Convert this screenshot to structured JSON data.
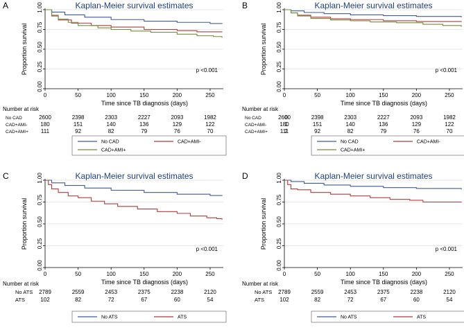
{
  "colors": {
    "blue": "#3c5a96",
    "red": "#b23a3a",
    "green": "#6e8c3a",
    "title": "#1f3f7f",
    "axis": "#000000",
    "grid": "#d0d0d0"
  },
  "chart_data": [
    {
      "type": "line",
      "panel_letter": "A",
      "title": "Kaplan-Meier survival estimates",
      "xlabel": "Time since TB diagnosis (days)",
      "ylabel": "Proportion survival",
      "xlim": [
        0,
        270
      ],
      "ylim": [
        0,
        1
      ],
      "xticks": [
        0,
        50,
        100,
        150,
        200,
        250
      ],
      "yticks": [
        "0.00",
        "0.25",
        "0.50",
        "0.75",
        "1.00"
      ],
      "annotation": "p <0.001",
      "series": [
        {
          "name": "No CAD",
          "color": "blue",
          "points": [
            [
              0,
              1.0
            ],
            [
              10,
              0.97
            ],
            [
              30,
              0.935
            ],
            [
              60,
              0.905
            ],
            [
              100,
              0.875
            ],
            [
              150,
              0.855
            ],
            [
              200,
              0.84
            ],
            [
              250,
              0.825
            ],
            [
              268,
              0.82
            ]
          ]
        },
        {
          "name": "CAD+AMI-",
          "color": "red",
          "points": [
            [
              0,
              1.0
            ],
            [
              10,
              0.92
            ],
            [
              20,
              0.87
            ],
            [
              40,
              0.83
            ],
            [
              70,
              0.8
            ],
            [
              100,
              0.78
            ],
            [
              150,
              0.75
            ],
            [
              200,
              0.735
            ],
            [
              230,
              0.72
            ],
            [
              268,
              0.715
            ]
          ]
        },
        {
          "name": "CAD+AMI+",
          "color": "green",
          "points": [
            [
              0,
              1.0
            ],
            [
              10,
              0.93
            ],
            [
              20,
              0.88
            ],
            [
              35,
              0.84
            ],
            [
              50,
              0.8
            ],
            [
              80,
              0.77
            ],
            [
              100,
              0.75
            ],
            [
              130,
              0.73
            ],
            [
              160,
              0.715
            ],
            [
              200,
              0.69
            ],
            [
              230,
              0.67
            ],
            [
              255,
              0.66
            ],
            [
              268,
              0.645
            ]
          ]
        }
      ],
      "risk_table": {
        "header": "Number at risk",
        "rows": [
          {
            "label": "No CAD",
            "prefix": "",
            "values": [
              "2600",
              "2398",
              "2303",
              "2227",
              "2093",
              "1982"
            ]
          },
          {
            "label": "CAD+AMI-",
            "prefix": "",
            "values": [
              "180",
              "151",
              "140",
              "136",
              "129",
              "122"
            ]
          },
          {
            "label": "CAD+AMI+",
            "prefix": "",
            "values": [
              "111",
              "92",
              "82",
              "79",
              "76",
              "70"
            ]
          }
        ]
      },
      "legend": [
        "No CAD",
        "CAD+AMI-",
        "CAD+AMI+"
      ]
    },
    {
      "type": "line",
      "panel_letter": "B",
      "title": "Kaplan-Meier survival estimates",
      "xlabel": "Time since TB diagnosis (days)",
      "ylabel": "Proportion survival",
      "xlim": [
        0,
        270
      ],
      "ylim": [
        0,
        1
      ],
      "xticks": [
        0,
        50,
        100,
        150,
        200,
        250
      ],
      "yticks": [
        "0.00",
        "0.25",
        "0.50",
        "0.75",
        "1.00"
      ],
      "annotation": "p <0.001",
      "series": [
        {
          "name": "No CAD",
          "color": "blue",
          "points": [
            [
              0,
              1.0
            ],
            [
              10,
              0.985
            ],
            [
              30,
              0.965
            ],
            [
              60,
              0.95
            ],
            [
              100,
              0.935
            ],
            [
              150,
              0.925
            ],
            [
              200,
              0.915
            ],
            [
              268,
              0.905
            ]
          ]
        },
        {
          "name": "CAD+AMI-",
          "color": "red",
          "points": [
            [
              0,
              1.0
            ],
            [
              10,
              0.96
            ],
            [
              20,
              0.93
            ],
            [
              40,
              0.905
            ],
            [
              70,
              0.885
            ],
            [
              100,
              0.875
            ],
            [
              150,
              0.86
            ],
            [
              200,
              0.85
            ],
            [
              268,
              0.845
            ]
          ]
        },
        {
          "name": "CAD+AMI+",
          "color": "green",
          "points": [
            [
              0,
              1.0
            ],
            [
              10,
              0.96
            ],
            [
              20,
              0.92
            ],
            [
              40,
              0.89
            ],
            [
              70,
              0.87
            ],
            [
              100,
              0.86
            ],
            [
              130,
              0.845
            ],
            [
              170,
              0.835
            ],
            [
              210,
              0.815
            ],
            [
              240,
              0.8
            ],
            [
              268,
              0.785
            ]
          ]
        }
      ],
      "risk_table": {
        "header": "Number at risk",
        "rows": [
          {
            "label": "No CAD",
            "prefix": "0",
            "values": [
              "2600",
              "2398",
              "2303",
              "2227",
              "2093",
              "1982"
            ]
          },
          {
            "label": "CAD+AMI-",
            "prefix": "1",
            "values": [
              "180",
              "151",
              "140",
              "136",
              "129",
              "122"
            ]
          },
          {
            "label": "CAD+AMI+",
            "prefix": "2",
            "values": [
              "111",
              "92",
              "82",
              "79",
              "76",
              "70"
            ]
          }
        ]
      },
      "legend": [
        "No CAD",
        "CAD+AMI-",
        "CAD+AMI+"
      ]
    },
    {
      "type": "line",
      "panel_letter": "C",
      "title": "Kaplan-Meier survival estimates",
      "xlabel": "Time since TB diagnosis (days)",
      "ylabel": "Proportion survival",
      "xlim": [
        0,
        270
      ],
      "ylim": [
        0,
        1
      ],
      "xticks": [
        0,
        50,
        100,
        150,
        200,
        250
      ],
      "yticks": [
        "0.00",
        "0.25",
        "0.50",
        "0.75",
        "1.00"
      ],
      "annotation": "p <0.001",
      "series": [
        {
          "name": "No ATS",
          "color": "blue",
          "points": [
            [
              0,
              1.0
            ],
            [
              10,
              0.97
            ],
            [
              30,
              0.94
            ],
            [
              60,
              0.91
            ],
            [
              100,
              0.885
            ],
            [
              150,
              0.86
            ],
            [
              200,
              0.84
            ],
            [
              250,
              0.825
            ],
            [
              268,
              0.82
            ]
          ]
        },
        {
          "name": "ATS",
          "color": "red",
          "points": [
            [
              0,
              1.0
            ],
            [
              5,
              0.95
            ],
            [
              10,
              0.9
            ],
            [
              20,
              0.86
            ],
            [
              35,
              0.82
            ],
            [
              50,
              0.8
            ],
            [
              70,
              0.76
            ],
            [
              90,
              0.73
            ],
            [
              110,
              0.7
            ],
            [
              140,
              0.67
            ],
            [
              170,
              0.64
            ],
            [
              200,
              0.62
            ],
            [
              220,
              0.59
            ],
            [
              245,
              0.57
            ],
            [
              260,
              0.56
            ],
            [
              268,
              0.55
            ]
          ]
        }
      ],
      "risk_table": {
        "header": "Number at risk",
        "rows": [
          {
            "label": "No ATS",
            "prefix": "",
            "values": [
              "2789",
              "2559",
              "2453",
              "2375",
              "2238",
              "2120"
            ]
          },
          {
            "label": "ATS",
            "prefix": "",
            "values": [
              "102",
              "82",
              "72",
              "67",
              "60",
              "54"
            ]
          }
        ]
      },
      "legend": [
        "No ATS",
        "ATS"
      ]
    },
    {
      "type": "line",
      "panel_letter": "D",
      "title": "Kaplan-Meier survival estimates",
      "xlabel": "Time since TB diagnosis (days)",
      "ylabel": "Proportion survival",
      "xlim": [
        0,
        270
      ],
      "ylim": [
        0,
        1
      ],
      "xticks": [
        0,
        50,
        100,
        150,
        200,
        250
      ],
      "yticks": [
        "0.00",
        "0.25",
        "0.50",
        "0.75",
        "1.00"
      ],
      "annotation": "p <0.001",
      "series": [
        {
          "name": "No ATS",
          "color": "blue",
          "points": [
            [
              0,
              1.0
            ],
            [
              10,
              0.985
            ],
            [
              30,
              0.965
            ],
            [
              60,
              0.945
            ],
            [
              100,
              0.93
            ],
            [
              150,
              0.915
            ],
            [
              200,
              0.905
            ],
            [
              268,
              0.895
            ]
          ]
        },
        {
          "name": "ATS",
          "color": "red",
          "points": [
            [
              0,
              1.0
            ],
            [
              5,
              0.95
            ],
            [
              10,
              0.9
            ],
            [
              20,
              0.89
            ],
            [
              40,
              0.86
            ],
            [
              70,
              0.84
            ],
            [
              100,
              0.82
            ],
            [
              130,
              0.8
            ],
            [
              160,
              0.78
            ],
            [
              190,
              0.77
            ],
            [
              210,
              0.75
            ],
            [
              268,
              0.745
            ]
          ]
        }
      ],
      "risk_table": {
        "header": "Number at risk",
        "rows": [
          {
            "label": "No ATS",
            "prefix": "",
            "values": [
              "2789",
              "2559",
              "2453",
              "2375",
              "2238",
              "2120"
            ]
          },
          {
            "label": "ATS",
            "prefix": "",
            "values": [
              "102",
              "82",
              "72",
              "67",
              "60",
              "54"
            ]
          }
        ]
      },
      "legend": [
        "No ATS",
        "ATS"
      ]
    }
  ]
}
